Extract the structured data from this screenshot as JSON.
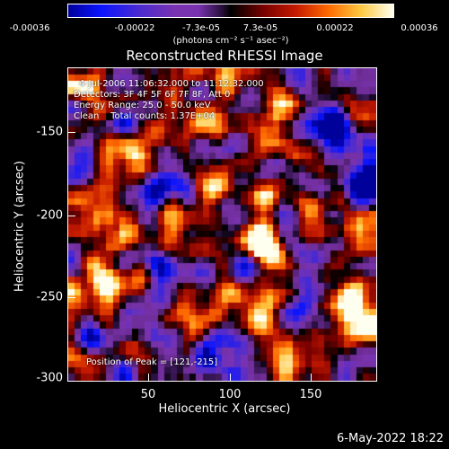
{
  "chart_data": {
    "type": "heatmap",
    "title": "Reconstructed RHESSI Image",
    "xlabel": "Heliocentric X (arcsec)",
    "ylabel": "Heliocentric Y (arcsec)",
    "xlim": [
      0,
      192
    ],
    "ylim": [
      -300,
      -108
    ],
    "x_ticks": [
      50,
      100,
      150
    ],
    "y_ticks": [
      -150,
      -200,
      -250,
      -300
    ],
    "colorbar": {
      "unit": "(photons cm⁻² s⁻¹ asec⁻²)",
      "range": [
        -0.00036,
        0.00036
      ],
      "ticks": [
        "-0.00036",
        "-0.00022",
        "-7.3e-05",
        "7.3e-05",
        "0.00022",
        "0.00036"
      ]
    },
    "info": {
      "time_range": "4-Jul-2006 11:06:32.000 to 11:12:32.000",
      "detectors": "Detectors: 3F 4F 5F 6F 7F 8F, Att 0",
      "energy": "Energy Range: 25.0 - 50.0 keV",
      "clean": "Clean    Total counts: 1.37E+04",
      "peak": "Position of Peak = [121,-215]"
    },
    "hotspots": [
      {
        "x": 121,
        "y": -215,
        "value": 0.00036
      },
      {
        "x": 26,
        "y": -240,
        "value": 0.00032
      },
      {
        "x": 137,
        "y": -290,
        "value": 0.00031
      },
      {
        "x": 185,
        "y": -212,
        "value": 0.00028
      },
      {
        "x": 118,
        "y": -258,
        "value": 0.00026
      },
      {
        "x": 178,
        "y": -255,
        "value": 0.00024
      },
      {
        "x": 5,
        "y": -278,
        "value": 0.00022
      },
      {
        "x": 110,
        "y": -165,
        "value": 0.0002
      },
      {
        "x": 45,
        "y": -160,
        "value": 0.00016
      },
      {
        "x": 135,
        "y": -145,
        "value": 0.00015
      },
      {
        "x": 88,
        "y": -190,
        "value": 0.00012
      },
      {
        "x": 77,
        "y": -213,
        "value": 0.00014
      },
      {
        "x": 70,
        "y": -268,
        "value": 0.00012
      },
      {
        "x": 160,
        "y": -280,
        "value": 0.00018
      },
      {
        "x": 30,
        "y": -205,
        "value": 0.00012
      },
      {
        "x": 150,
        "y": -195,
        "value": 0.0001
      },
      {
        "x": 15,
        "y": -120,
        "value": 0.0001
      }
    ],
    "coldspots": [
      {
        "x": 160,
        "y": -145,
        "value": -0.00034
      },
      {
        "x": 10,
        "y": -270,
        "value": -0.0003
      },
      {
        "x": 88,
        "y": -290,
        "value": -0.00026
      },
      {
        "x": 150,
        "y": -240,
        "value": -0.00025
      },
      {
        "x": 55,
        "y": -230,
        "value": -0.00022
      },
      {
        "x": 95,
        "y": -160,
        "value": -0.0002
      },
      {
        "x": 60,
        "y": -183,
        "value": -0.00018
      },
      {
        "x": 180,
        "y": -155,
        "value": -0.00022
      }
    ]
  },
  "footer": {
    "timestamp": "6-May-2022 18:22"
  }
}
